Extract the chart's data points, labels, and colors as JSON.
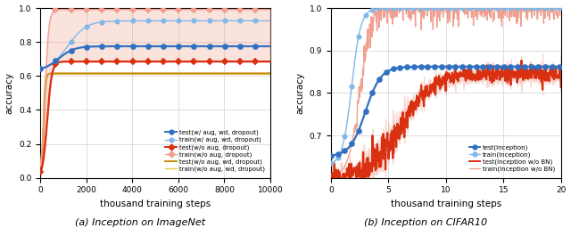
{
  "left": {
    "caption": "(a) Inception on ImageNet",
    "xlabel": "thousand training steps",
    "ylabel": "accuracy",
    "xlim": [
      0,
      10000
    ],
    "ylim": [
      0.0,
      1.0
    ],
    "yticks": [
      0.0,
      0.2,
      0.4,
      0.6,
      0.8,
      1.0
    ],
    "xticks": [
      0,
      2000,
      4000,
      6000,
      8000,
      10000
    ],
    "legend_entries": [
      "test(w/ aug, wd, dropout)",
      "train(w/ aug, wd, dropout)",
      "test(w/o aug, dropout)",
      "train(w/o aug, dropout)",
      "test(w/o aug, wd, dropout)",
      "train(w/o aug, wd, dropout)"
    ]
  },
  "right": {
    "caption": "(b) Inception on CIFAR10",
    "xlabel": "thousand training steps",
    "ylabel": "accuracy",
    "xlim": [
      0,
      20
    ],
    "ylim": [
      0.6,
      1.0
    ],
    "yticks": [
      0.7,
      0.8,
      0.9,
      1.0
    ],
    "xticks": [
      0,
      5,
      10,
      15,
      20
    ],
    "legend_entries": [
      "test(Inception)",
      "train(Inception)",
      "test(Inception w/o BN)",
      "train(Inception w/o BN)"
    ]
  },
  "colors": {
    "blue_dark": "#3070c0",
    "blue_light": "#80b8e8",
    "red_dark": "#d83010",
    "red_light": "#f0a090",
    "gold_dark": "#c89010",
    "gold_light": "#e8c840"
  }
}
